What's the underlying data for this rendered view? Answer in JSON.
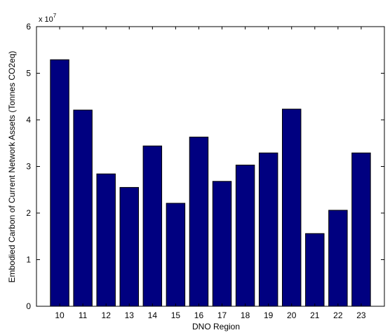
{
  "chart_data": {
    "type": "bar",
    "title": "",
    "xlabel": "DNO Region",
    "ylabel": "Embodied Carbon of Current Network Assets (Tonnes CO2eq)",
    "exponent_label": "x 10",
    "exponent_power": "7",
    "categories": [
      "10",
      "11",
      "12",
      "13",
      "14",
      "15",
      "16",
      "17",
      "18",
      "19",
      "20",
      "21",
      "22",
      "23"
    ],
    "values": [
      5.29,
      4.21,
      2.84,
      2.55,
      3.44,
      2.21,
      3.63,
      2.68,
      3.03,
      3.29,
      4.23,
      1.56,
      2.06,
      3.29
    ],
    "value_multiplier": 10000000,
    "ylim": [
      0,
      6
    ],
    "yticks": [
      "0",
      "1",
      "2",
      "3",
      "4",
      "5",
      "6"
    ],
    "grid": false,
    "bar_color": "#000080",
    "x_slots": 15
  }
}
